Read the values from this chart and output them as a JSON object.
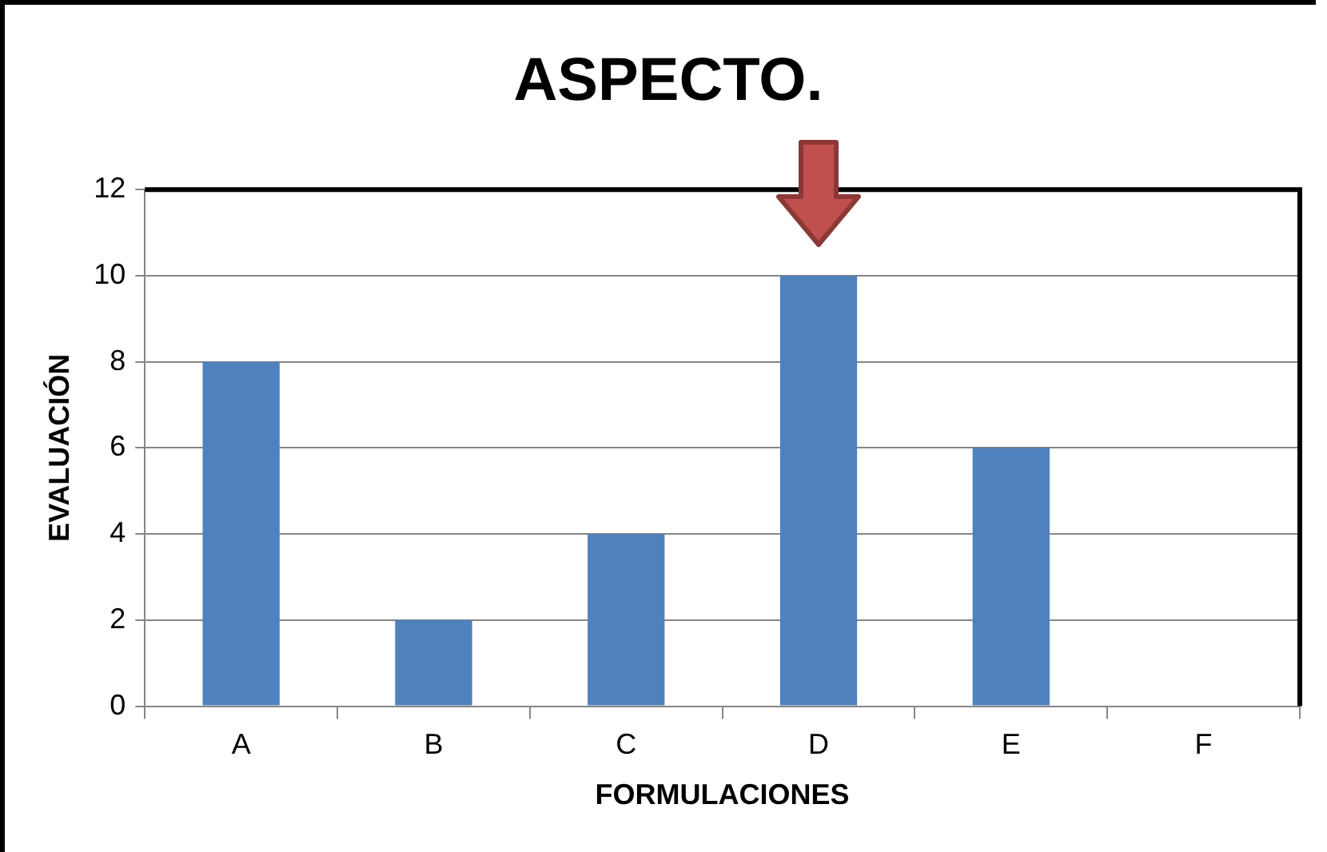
{
  "chart_data": {
    "type": "bar",
    "title": "ASPECTO.",
    "xlabel": "FORMULACIONES",
    "ylabel": "EVALUACIÓN",
    "categories": [
      "A",
      "B",
      "C",
      "D",
      "E",
      "F"
    ],
    "values": [
      8,
      2,
      4,
      10,
      6,
      0
    ],
    "color": "#4f81bd",
    "ylim": [
      0,
      12
    ],
    "yticks": [
      0,
      2,
      4,
      6,
      8,
      10,
      12
    ],
    "grid": "y",
    "legend": false
  }
}
